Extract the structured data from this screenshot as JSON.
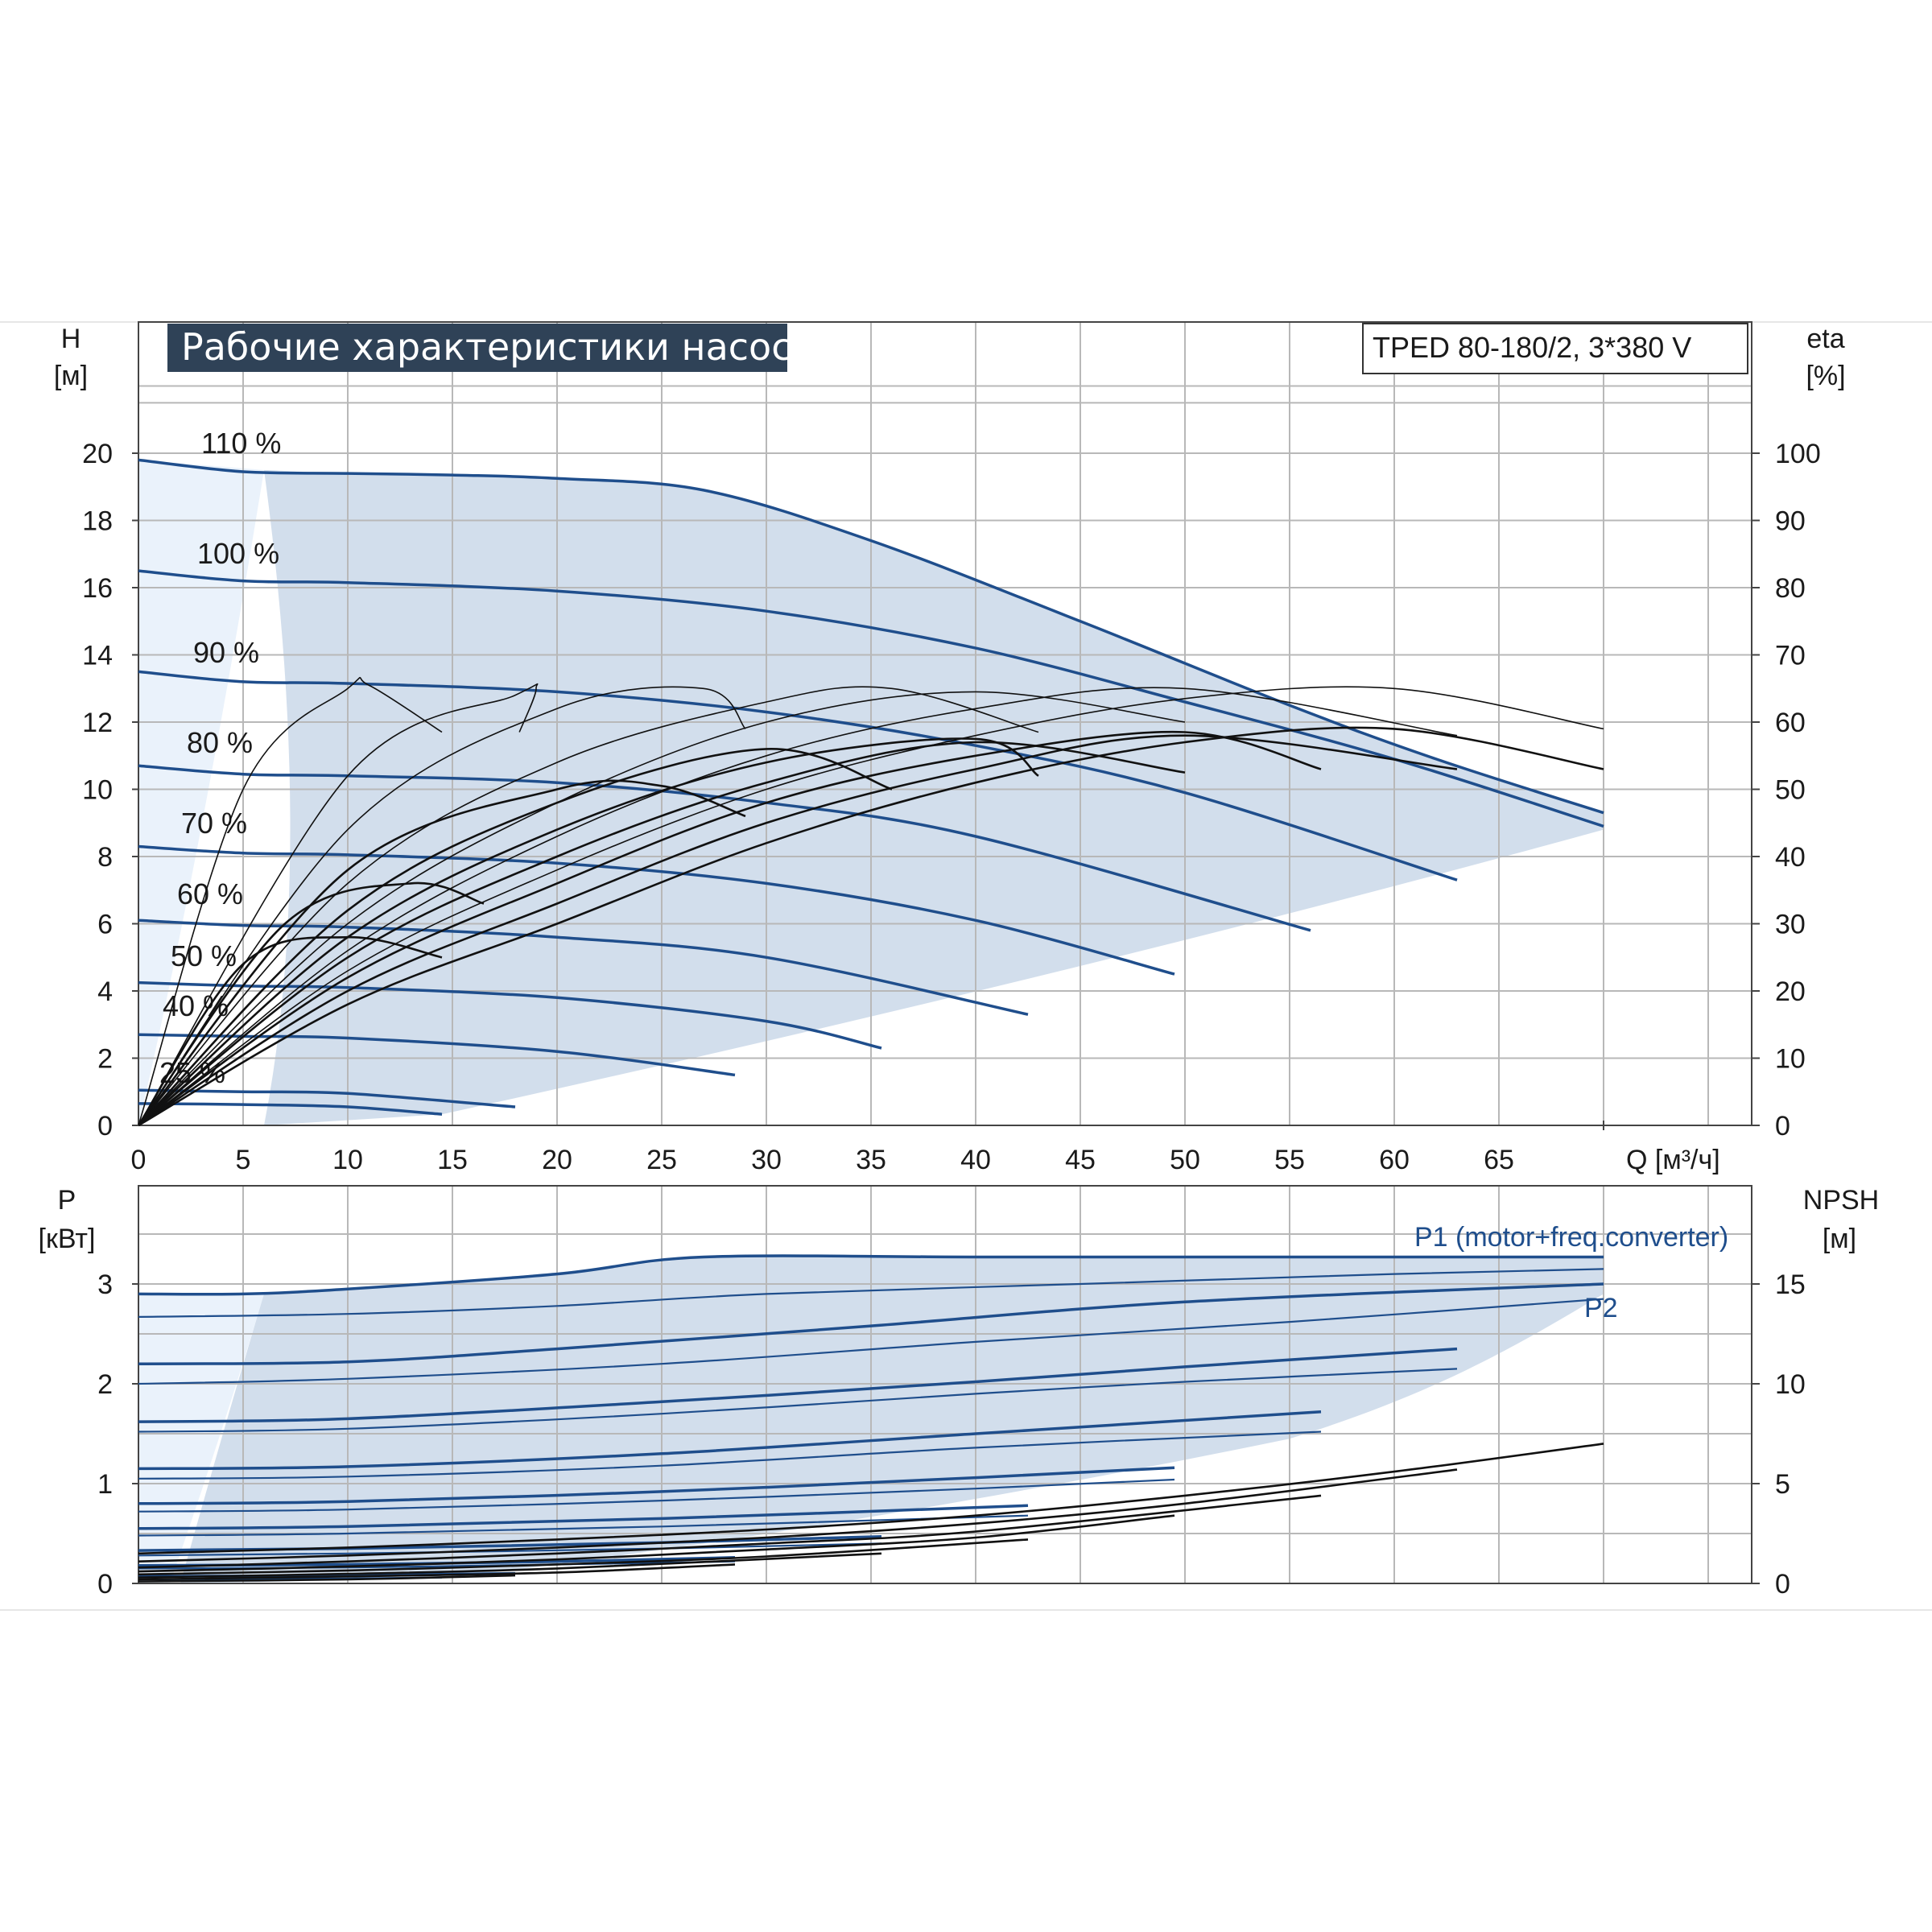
{
  "title": "Рабочие характеристики насоса",
  "model": "TPED 80-180/2, 3*380 V",
  "colors": {
    "curve": "#1f4e8c",
    "fill": "#d2deec",
    "fill_light": "#eaf2fb",
    "grid": "#b8b8b8",
    "eta": "#111111",
    "title_bg": "#2f4257"
  },
  "axes": {
    "h_label": "H",
    "h_unit": "[м]",
    "eta_label": "eta",
    "eta_unit": "[%]",
    "q_label": "Q [м³/ч]",
    "p_label": "P",
    "p_unit": "[кВт]",
    "npsh_label": "NPSH",
    "npsh_unit": "[м]"
  },
  "p1_label": "P1 (motor+freq.converter)",
  "p2_label": "P2",
  "chart_data": [
    {
      "type": "line",
      "title": "Рабочие характеристики насоса",
      "xlabel": "Q [м³/ч]",
      "ylabel": "H [м]",
      "y2label": "eta [%]",
      "xlim": [
        0,
        77
      ],
      "ylim": [
        0,
        22
      ],
      "y2lim": [
        0,
        110
      ],
      "xticks": [
        0,
        5,
        10,
        15,
        20,
        25,
        30,
        35,
        40,
        45,
        50,
        55,
        60,
        65
      ],
      "yticks": [
        0,
        2,
        4,
        6,
        8,
        10,
        12,
        14,
        16,
        18,
        20
      ],
      "y2ticks": [
        0,
        10,
        20,
        30,
        40,
        50,
        60,
        70,
        80,
        90,
        100
      ],
      "grid": true,
      "series": [
        {
          "name": "110 %",
          "x": [
            0,
            5,
            10,
            15,
            20,
            27,
            35,
            45,
            55,
            62,
            70
          ],
          "y": [
            19.8,
            19.45,
            19.4,
            19.35,
            19.25,
            18.9,
            17.4,
            15.0,
            12.5,
            10.9,
            9.3
          ]
        },
        {
          "name": "100 %",
          "x": [
            0,
            5,
            10,
            20,
            30,
            40,
            50,
            60,
            70
          ],
          "y": [
            16.5,
            16.2,
            16.15,
            15.9,
            15.3,
            14.2,
            12.6,
            10.9,
            8.9
          ]
        },
        {
          "name": "90 %",
          "x": [
            0,
            5,
            10,
            20,
            30,
            40,
            50,
            63
          ],
          "y": [
            13.5,
            13.2,
            13.15,
            12.9,
            12.3,
            11.3,
            9.9,
            7.3
          ]
        },
        {
          "name": "80 %",
          "x": [
            0,
            5,
            10,
            20,
            30,
            40,
            56
          ],
          "y": [
            10.7,
            10.45,
            10.4,
            10.2,
            9.6,
            8.6,
            5.8
          ]
        },
        {
          "name": "70 %",
          "x": [
            0,
            5,
            10,
            20,
            30,
            40,
            49.5
          ],
          "y": [
            8.3,
            8.1,
            8.05,
            7.8,
            7.2,
            6.1,
            4.5
          ]
        },
        {
          "name": "60 %",
          "x": [
            0,
            5,
            10,
            20,
            30,
            42.5
          ],
          "y": [
            6.1,
            5.95,
            5.9,
            5.6,
            5.0,
            3.3
          ]
        },
        {
          "name": "50 %",
          "x": [
            0,
            5,
            10,
            20,
            30,
            35.5
          ],
          "y": [
            4.25,
            4.15,
            4.1,
            3.8,
            3.1,
            2.3
          ]
        },
        {
          "name": "40 %",
          "x": [
            0,
            5,
            10,
            20,
            28.5
          ],
          "y": [
            2.7,
            2.65,
            2.6,
            2.2,
            1.5
          ]
        },
        {
          "name": "25 %",
          "x": [
            0,
            5,
            10,
            18
          ],
          "y": [
            1.05,
            1.0,
            0.95,
            0.55
          ]
        },
        {
          "name": "",
          "x": [
            0,
            5,
            10,
            14.5
          ],
          "y": [
            0.65,
            0.62,
            0.55,
            0.33
          ]
        }
      ],
      "eta_series": [
        {
          "x": [
            0,
            5,
            10,
            11,
            14.5
          ],
          "eta": [
            0,
            50,
            65,
            65.5,
            58.5
          ]
        },
        {
          "x": [
            0,
            10,
            18,
            19,
            18.2
          ],
          "eta": [
            0,
            52,
            64,
            65,
            58.5
          ]
        },
        {
          "x": [
            0,
            10,
            20,
            27,
            29
          ],
          "eta": [
            0,
            44,
            62,
            65,
            59
          ]
        },
        {
          "x": [
            0,
            10,
            20,
            30,
            36,
            43
          ],
          "eta": [
            0,
            36,
            54,
            63,
            65,
            58.5
          ]
        },
        {
          "x": [
            0,
            10,
            20,
            30,
            40,
            50
          ],
          "eta": [
            0,
            30,
            48,
            60,
            64.5,
            60
          ]
        },
        {
          "x": [
            0,
            10,
            20,
            30,
            40,
            50,
            63
          ],
          "eta": [
            0,
            26,
            43,
            55,
            62,
            65,
            58
          ]
        },
        {
          "x": [
            0,
            10,
            20,
            30,
            40,
            50,
            60,
            70
          ],
          "eta": [
            0,
            23,
            38,
            50,
            58,
            63.5,
            65,
            59
          ]
        },
        {
          "x": [
            0,
            5,
            10,
            14.5
          ],
          "eta": [
            0,
            24,
            28,
            25
          ]
        },
        {
          "x": [
            0,
            7,
            13,
            16.5
          ],
          "eta": [
            0,
            30,
            36,
            33
          ]
        },
        {
          "x": [
            0,
            10,
            20,
            25,
            29
          ],
          "eta": [
            0,
            38,
            50,
            50.5,
            46
          ]
        },
        {
          "x": [
            0,
            10,
            20,
            30,
            36
          ],
          "eta": [
            0,
            32,
            48,
            56,
            50
          ]
        },
        {
          "x": [
            0,
            10,
            20,
            30,
            40,
            43
          ],
          "eta": [
            0,
            28,
            44,
            54,
            57.5,
            52
          ]
        },
        {
          "x": [
            0,
            10,
            20,
            30,
            40,
            50
          ],
          "eta": [
            0,
            25,
            40,
            51,
            57,
            52.5
          ]
        },
        {
          "x": [
            0,
            10,
            20,
            30,
            40,
            50,
            56.5
          ],
          "eta": [
            0,
            22,
            36,
            48,
            55,
            58.5,
            53
          ]
        },
        {
          "x": [
            0,
            10,
            20,
            30,
            40,
            50,
            63
          ],
          "eta": [
            0,
            20,
            33,
            45,
            53,
            58,
            53
          ]
        },
        {
          "x": [
            0,
            10,
            20,
            30,
            40,
            50,
            60,
            70
          ],
          "eta": [
            0,
            18,
            30,
            42,
            51,
            57,
            59,
            53
          ]
        }
      ],
      "labels": [
        "110 %",
        "100 %",
        "90 %",
        "80 %",
        "70 %",
        "60 %",
        "50 %",
        "40 %",
        "25 %"
      ]
    },
    {
      "type": "line",
      "xlabel": "Q [м³/ч]",
      "ylabel": "P [кВт]",
      "y2label": "NPSH [м]",
      "xlim": [
        0,
        77
      ],
      "ylim": [
        0,
        3.75
      ],
      "y2lim": [
        0,
        18.75
      ],
      "yticks": [
        0,
        1,
        2,
        3
      ],
      "y2ticks": [
        0,
        5,
        10,
        15
      ],
      "grid": true,
      "series": [
        {
          "name": "P1 (motor+freq.converter)",
          "x": [
            0,
            5,
            10,
            20,
            27,
            40,
            55,
            70
          ],
          "y": [
            2.9,
            2.9,
            2.95,
            3.1,
            3.27,
            3.27,
            3.27,
            3.27
          ]
        },
        {
          "name": "P2",
          "x": [
            0,
            10,
            20,
            30,
            45,
            60,
            70
          ],
          "y": [
            2.67,
            2.7,
            2.78,
            2.9,
            3.0,
            3.1,
            3.15
          ]
        },
        {
          "name": "",
          "x": [
            0,
            10,
            20,
            35,
            50,
            70
          ],
          "y": [
            2.2,
            2.22,
            2.35,
            2.58,
            2.82,
            3.0
          ]
        },
        {
          "name": "",
          "x": [
            0,
            10,
            25,
            40,
            55,
            70
          ],
          "y": [
            2.0,
            2.05,
            2.2,
            2.42,
            2.62,
            2.85
          ]
        },
        {
          "name": "",
          "x": [
            0,
            10,
            25,
            40,
            50,
            63
          ],
          "y": [
            1.62,
            1.65,
            1.82,
            2.02,
            2.17,
            2.35
          ]
        },
        {
          "name": "",
          "x": [
            0,
            10,
            25,
            40,
            50,
            63
          ],
          "y": [
            1.52,
            1.55,
            1.7,
            1.9,
            2.02,
            2.15
          ]
        },
        {
          "name": "",
          "x": [
            0,
            10,
            25,
            40,
            56.5
          ],
          "y": [
            1.15,
            1.17,
            1.3,
            1.5,
            1.72
          ]
        },
        {
          "name": "",
          "x": [
            0,
            10,
            25,
            40,
            56.5
          ],
          "y": [
            1.05,
            1.07,
            1.18,
            1.36,
            1.52
          ]
        },
        {
          "name": "",
          "x": [
            0,
            10,
            25,
            40,
            49.5
          ],
          "y": [
            0.8,
            0.82,
            0.92,
            1.06,
            1.16
          ]
        },
        {
          "name": "",
          "x": [
            0,
            10,
            25,
            40,
            49.5
          ],
          "y": [
            0.72,
            0.74,
            0.83,
            0.95,
            1.04
          ]
        },
        {
          "name": "",
          "x": [
            0,
            10,
            25,
            42.5
          ],
          "y": [
            0.55,
            0.57,
            0.65,
            0.78
          ]
        },
        {
          "name": "",
          "x": [
            0,
            10,
            25,
            42.5
          ],
          "y": [
            0.48,
            0.5,
            0.57,
            0.68
          ]
        },
        {
          "name": "",
          "x": [
            0,
            10,
            25,
            35.5
          ],
          "y": [
            0.33,
            0.35,
            0.41,
            0.47
          ]
        },
        {
          "name": "",
          "x": [
            0,
            10,
            25,
            35.5
          ],
          "y": [
            0.28,
            0.3,
            0.35,
            0.4
          ]
        },
        {
          "name": "",
          "x": [
            0,
            10,
            20,
            28.5
          ],
          "y": [
            0.18,
            0.19,
            0.22,
            0.26
          ]
        },
        {
          "name": "",
          "x": [
            0,
            10,
            20,
            28.5
          ],
          "y": [
            0.15,
            0.16,
            0.19,
            0.22
          ]
        },
        {
          "name": "",
          "x": [
            0,
            10,
            18
          ],
          "y": [
            0.07,
            0.08,
            0.1
          ]
        },
        {
          "name": "",
          "x": [
            0,
            10,
            14.5
          ],
          "y": [
            0.04,
            0.05,
            0.06
          ]
        }
      ],
      "npsh_series": [
        {
          "x": [
            0,
            10,
            20,
            30,
            40,
            50,
            60,
            70
          ],
          "npsh": [
            1.5,
            1.8,
            2.2,
            2.7,
            3.4,
            4.4,
            5.6,
            7.0
          ]
        },
        {
          "x": [
            0,
            10,
            20,
            30,
            40,
            50,
            63
          ],
          "npsh": [
            1.1,
            1.4,
            1.8,
            2.3,
            3.0,
            4.0,
            5.7
          ]
        },
        {
          "x": [
            0,
            10,
            20,
            30,
            40,
            56.5
          ],
          "npsh": [
            0.8,
            1.1,
            1.5,
            2.0,
            2.6,
            4.4
          ]
        },
        {
          "x": [
            0,
            10,
            20,
            30,
            40,
            49.5
          ],
          "npsh": [
            0.6,
            0.85,
            1.2,
            1.7,
            2.3,
            3.4
          ]
        },
        {
          "x": [
            0,
            10,
            20,
            30,
            42.5
          ],
          "npsh": [
            0.45,
            0.65,
            0.95,
            1.35,
            2.2
          ]
        },
        {
          "x": [
            0,
            10,
            20,
            35.5
          ],
          "npsh": [
            0.3,
            0.48,
            0.75,
            1.5
          ]
        },
        {
          "x": [
            0,
            10,
            20,
            28.5
          ],
          "npsh": [
            0.2,
            0.35,
            0.55,
            0.95
          ]
        },
        {
          "x": [
            0,
            10,
            18
          ],
          "npsh": [
            0.1,
            0.2,
            0.4
          ]
        }
      ]
    }
  ]
}
